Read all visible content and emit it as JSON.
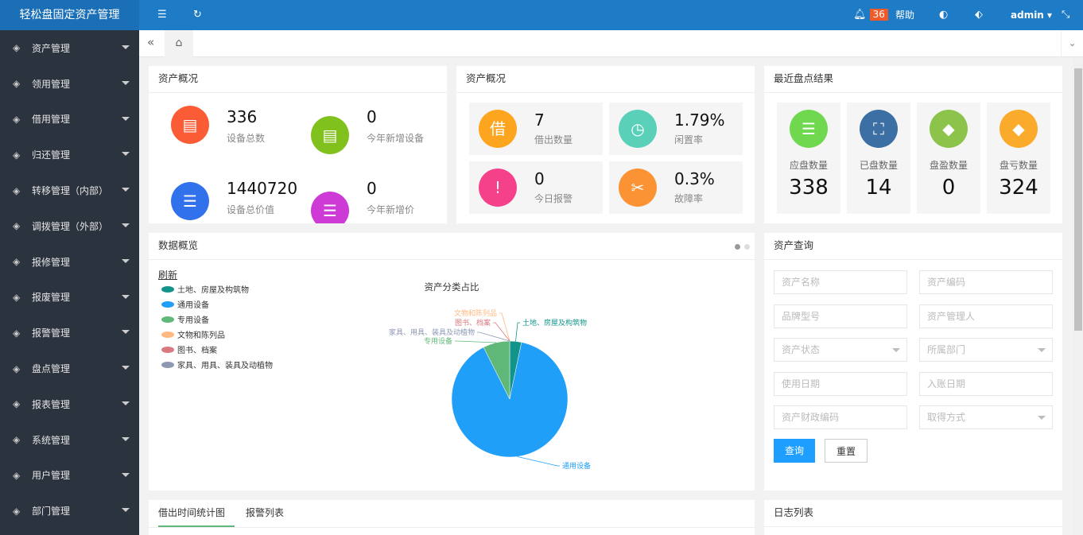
{
  "header": {
    "title": "轻松盘固定资产管理",
    "notif_count": "36",
    "help": "帮助",
    "user": "admin"
  },
  "sidebar": {
    "items": [
      {
        "label": "资产管理",
        "icon": "cube-icon"
      },
      {
        "label": "领用管理",
        "icon": "hand-icon"
      },
      {
        "label": "借用管理",
        "icon": "borrow-icon"
      },
      {
        "label": "归还管理",
        "icon": "return-icon"
      },
      {
        "label": "转移管理（内部）",
        "icon": "transfer-icon"
      },
      {
        "label": "调拨管理（外部）",
        "icon": "allocate-icon"
      },
      {
        "label": "报修管理",
        "icon": "tools-icon"
      },
      {
        "label": "报废管理",
        "icon": "scrap-icon"
      },
      {
        "label": "报警管理",
        "icon": "alarm-icon"
      },
      {
        "label": "盘点管理",
        "icon": "search-icon"
      },
      {
        "label": "报表管理",
        "icon": "pie-icon"
      },
      {
        "label": "系统管理",
        "icon": "gear-icon"
      },
      {
        "label": "用户管理",
        "icon": "user-icon"
      },
      {
        "label": "部门管理",
        "icon": "dept-icon"
      }
    ]
  },
  "overview1": {
    "title": "资产概况",
    "items": [
      {
        "value": "336",
        "label": "设备总数",
        "color": "#fb5c35"
      },
      {
        "value": "0",
        "label": "今年新增设备",
        "color": "#81c11d"
      },
      {
        "value": "1440720",
        "label": "设备总价值",
        "color": "#3271ec"
      },
      {
        "value": "0",
        "label": "今年新增价",
        "color": "#cd3ad5"
      }
    ]
  },
  "overview2": {
    "title": "资产概况",
    "items": [
      {
        "value": "7",
        "label": "借出数量",
        "color": "#fda51e"
      },
      {
        "value": "1.79%",
        "label": "闲置率",
        "color": "#5bd0b8"
      },
      {
        "value": "0",
        "label": "今日报警",
        "color": "#f5418a"
      },
      {
        "value": "0.3%",
        "label": "故障率",
        "color": "#fb9335"
      }
    ]
  },
  "inventory": {
    "title": "最近盘点结果",
    "items": [
      {
        "label": "应盘数量",
        "value": "338",
        "color": "#6fd84e"
      },
      {
        "label": "已盘数量",
        "value": "14",
        "color": "#3c6fa3"
      },
      {
        "label": "盘盈数量",
        "value": "0",
        "color": "#8cc34a"
      },
      {
        "label": "盘亏数量",
        "value": "324",
        "color": "#fbab2b"
      }
    ]
  },
  "data_overview": {
    "title": "数据概览",
    "refresh": "刷新"
  },
  "chart_data": {
    "type": "pie",
    "title": "资产分类占比",
    "categories": [
      "土地、房屋及构筑物",
      "通用设备",
      "专用设备",
      "文物和陈列品",
      "图书、档案",
      "家具、用具、装具及动植物"
    ],
    "values": [
      11,
      300,
      25,
      0,
      0,
      0
    ],
    "colors": [
      "#12948a",
      "#209ff8",
      "#5fb878",
      "#ffb980",
      "#d87a80",
      "#8d98b3"
    ],
    "legend": "top-left"
  },
  "query": {
    "title": "资产查询",
    "fields": [
      "资产名称",
      "资产编码",
      "品牌型号",
      "资产管理人",
      "资产状态",
      "所属部门",
      "使用日期",
      "入账日期",
      "资产财政编码",
      "取得方式"
    ],
    "search": "查询",
    "reset": "重置"
  },
  "bottom": {
    "tabs": [
      "借出时间统计图",
      "报警列表"
    ],
    "log_title": "日志列表"
  }
}
